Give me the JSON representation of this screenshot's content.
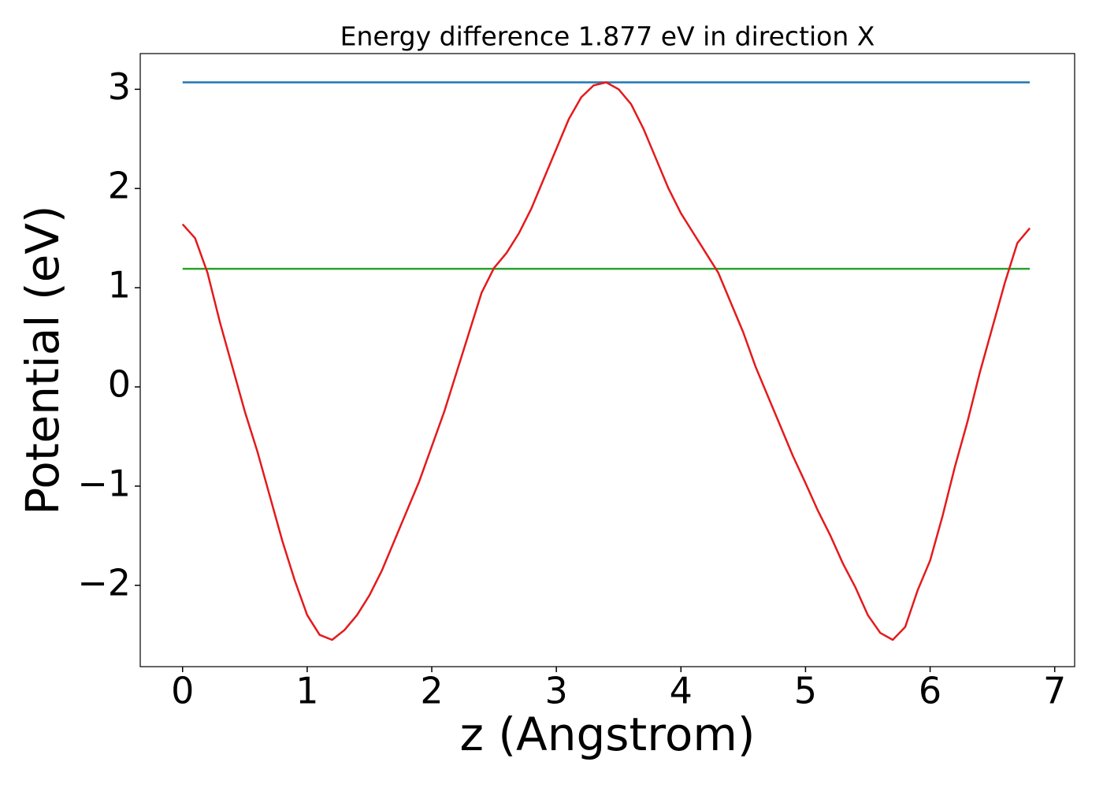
{
  "chart_data": {
    "type": "line",
    "title": "Energy difference 1.877 eV in direction X",
    "xlabel": "z (Angstrom)",
    "ylabel": "Potential (eV)",
    "xlim": [
      -0.34,
      7.16
    ],
    "ylim": [
      -2.82,
      3.36
    ],
    "xticks": [
      0,
      1,
      2,
      3,
      4,
      5,
      6,
      7
    ],
    "yticks": [
      {
        "value": -2,
        "label": "−2"
      },
      {
        "value": -1,
        "label": "−1"
      },
      0,
      1,
      2,
      3
    ],
    "grid": false,
    "series": [
      {
        "color": "#1f77b4",
        "x": [
          0,
          6.8
        ],
        "values": [
          3.07,
          3.07
        ]
      },
      {
        "color": "#2ca02c",
        "x": [
          0,
          6.8
        ],
        "values": [
          1.19,
          1.19
        ]
      },
      {
        "color": "#e41a1c",
        "x": [
          0,
          0.1,
          0.2,
          0.3,
          0.4,
          0.5,
          0.6,
          0.7,
          0.8,
          0.9,
          1.0,
          1.1,
          1.2,
          1.3,
          1.4,
          1.5,
          1.6,
          1.7,
          1.8,
          1.9,
          2.0,
          2.1,
          2.2,
          2.3,
          2.4,
          2.5,
          2.6,
          2.7,
          2.8,
          2.9,
          3.0,
          3.1,
          3.2,
          3.3,
          3.4,
          3.5,
          3.6,
          3.7,
          3.8,
          3.9,
          4.0,
          4.1,
          4.2,
          4.3,
          4.4,
          4.5,
          4.6,
          4.7,
          4.8,
          4.9,
          5.0,
          5.1,
          5.2,
          5.3,
          5.4,
          5.5,
          5.6,
          5.7,
          5.8,
          5.9,
          6.0,
          6.1,
          6.2,
          6.3,
          6.4,
          6.5,
          6.6,
          6.7,
          6.8
        ],
        "values": [
          1.64,
          1.5,
          1.15,
          0.65,
          0.2,
          -0.25,
          -0.65,
          -1.1,
          -1.55,
          -1.95,
          -2.3,
          -2.5,
          -2.55,
          -2.45,
          -2.3,
          -2.1,
          -1.85,
          -1.55,
          -1.25,
          -0.95,
          -0.6,
          -0.25,
          0.15,
          0.55,
          0.95,
          1.2,
          1.35,
          1.55,
          1.8,
          2.1,
          2.4,
          2.7,
          2.92,
          3.04,
          3.07,
          3.0,
          2.85,
          2.6,
          2.3,
          2.0,
          1.75,
          1.55,
          1.35,
          1.15,
          0.85,
          0.55,
          0.2,
          -0.1,
          -0.4,
          -0.7,
          -0.97,
          -1.25,
          -1.5,
          -1.78,
          -2.02,
          -2.3,
          -2.48,
          -2.55,
          -2.42,
          -2.05,
          -1.75,
          -1.3,
          -0.8,
          -0.35,
          0.15,
          0.6,
          1.05,
          1.45,
          1.6
        ]
      }
    ]
  }
}
